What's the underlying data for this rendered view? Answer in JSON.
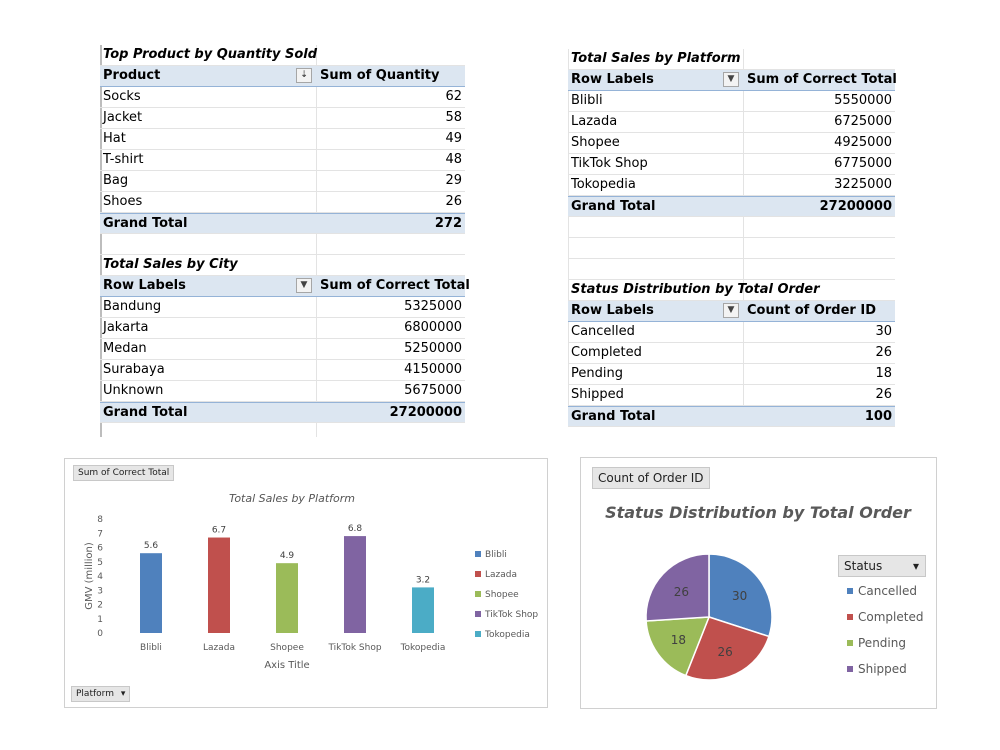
{
  "top_product": {
    "title": "Top Product by Quantity Sold",
    "col1": "Product",
    "col2": "Sum of Quantity",
    "rows": [
      {
        "label": "Socks",
        "value": "62"
      },
      {
        "label": "Jacket",
        "value": "58"
      },
      {
        "label": "Hat",
        "value": "49"
      },
      {
        "label": "T-shirt",
        "value": "48"
      },
      {
        "label": "Bag",
        "value": "29"
      },
      {
        "label": "Shoes",
        "value": "26"
      }
    ],
    "total_label": "Grand Total",
    "total_value": "272"
  },
  "city_sales": {
    "title": "Total Sales by City",
    "col1": "Row Labels",
    "col2": "Sum of Correct Total",
    "rows": [
      {
        "label": "Bandung",
        "value": "5325000"
      },
      {
        "label": "Jakarta",
        "value": "6800000"
      },
      {
        "label": "Medan",
        "value": "5250000"
      },
      {
        "label": "Surabaya",
        "value": "4150000"
      },
      {
        "label": "Unknown",
        "value": "5675000"
      }
    ],
    "total_label": "Grand Total",
    "total_value": "27200000"
  },
  "platform_sales": {
    "title": "Total Sales by Platform",
    "col1": "Row Labels",
    "col2": "Sum of Correct Total",
    "rows": [
      {
        "label": "Blibli",
        "value": "5550000"
      },
      {
        "label": "Lazada",
        "value": "6725000"
      },
      {
        "label": "Shopee",
        "value": "4925000"
      },
      {
        "label": "TikTok Shop",
        "value": "6775000"
      },
      {
        "label": "Tokopedia",
        "value": "3225000"
      }
    ],
    "total_label": "Grand Total",
    "total_value": "27200000"
  },
  "status_dist": {
    "title": "Status Distribution by Total Order",
    "col1": "Row Labels",
    "col2": "Count of Order ID",
    "rows": [
      {
        "label": "Cancelled",
        "value": "30"
      },
      {
        "label": "Completed",
        "value": "26"
      },
      {
        "label": "Pending",
        "value": "18"
      },
      {
        "label": "Shipped",
        "value": "26"
      }
    ],
    "total_label": "Grand Total",
    "total_value": "100"
  },
  "bar_chart_ui": {
    "field_button_top": "Sum of Correct Total",
    "field_button_bottom": "Platform",
    "dropdown_glyph": "▾"
  },
  "pie_chart_ui": {
    "field_button_top": "Count of Order ID",
    "legend_header": "Status",
    "dropdown_glyph": "▾"
  },
  "chart_data": [
    {
      "type": "bar",
      "title": "Total Sales by Platform",
      "xlabel": "Axis Title",
      "ylabel": "GMV (million)",
      "categories": [
        "Blibli",
        "Lazada",
        "Shopee",
        "TikTok Shop",
        "Tokopedia"
      ],
      "values": [
        5.6,
        6.7,
        4.9,
        6.8,
        3.2
      ],
      "data_labels": [
        "5.6",
        "6.7",
        "4.9",
        "6.8",
        "3.2"
      ],
      "colors": [
        "#4f81bd",
        "#c0504d",
        "#9bbb59",
        "#8064a2",
        "#4bacc6"
      ],
      "ylim": [
        0,
        8
      ],
      "yticks": [
        "0",
        "1",
        "2",
        "3",
        "4",
        "5",
        "6",
        "7",
        "8"
      ],
      "legend": [
        "Blibli",
        "Lazada",
        "Shopee",
        "TikTok Shop",
        "Tokopedia"
      ],
      "legend_position": "right",
      "grid": false
    },
    {
      "type": "pie",
      "title": "Status Distribution by Total Order",
      "categories": [
        "Cancelled",
        "Completed",
        "Pending",
        "Shipped"
      ],
      "values": [
        30,
        26,
        18,
        26
      ],
      "data_labels": [
        "30",
        "26",
        "18",
        "26"
      ],
      "colors": [
        "#4f81bd",
        "#c0504d",
        "#9bbb59",
        "#8064a2"
      ],
      "legend_position": "right"
    }
  ]
}
